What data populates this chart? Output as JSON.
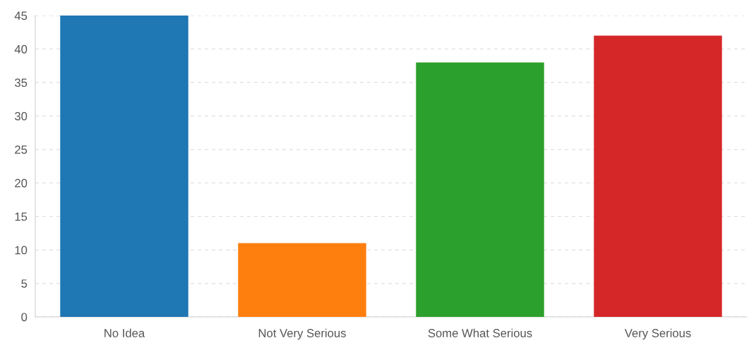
{
  "chart_data": {
    "type": "bar",
    "categories": [
      "No Idea",
      "Not Very Serious",
      "Some What Serious",
      "Very Serious"
    ],
    "values": [
      45,
      11,
      38,
      42
    ],
    "colors": [
      "#1f77b4",
      "#ff7f0e",
      "#2ca02c",
      "#d62728"
    ],
    "ylim": [
      0,
      45
    ],
    "yticks": [
      0,
      5,
      10,
      15,
      20,
      25,
      30,
      35,
      40,
      45
    ],
    "grid": "y",
    "legend": false
  }
}
